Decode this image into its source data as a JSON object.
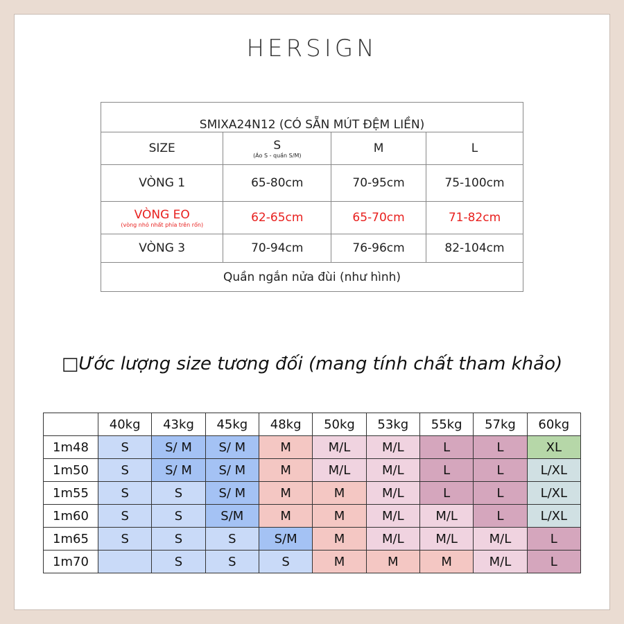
{
  "brand": "HERSIGN",
  "size_table": {
    "title": "SMIXA24N12 (CÓ SẴN MÚT ĐỆM LIỀN)",
    "header": {
      "label": "SIZE",
      "sizes": [
        {
          "name": "S",
          "note": "(Áo S - quần S/M)"
        },
        {
          "name": "M"
        },
        {
          "name": "L"
        }
      ]
    },
    "rows": [
      {
        "label": "VÒNG 1",
        "values": [
          "65-80cm",
          "70-95cm",
          "75-100cm"
        ]
      },
      {
        "label": "VÒNG EO",
        "note": "(vòng nhỏ nhất phía trên rốn)",
        "values": [
          "62-65cm",
          "65-70cm",
          "71-82cm"
        ],
        "color": "#e8201e"
      },
      {
        "label": "VÒNG 3",
        "values": [
          "70-94cm",
          "76-96cm",
          "82-104cm"
        ]
      }
    ],
    "footer": "Quần ngắn nửa đùi (như hình)"
  },
  "estimate_heading": "□Ước lượng size tương đối (mang tính chất tham khảo)",
  "estimate_table": {
    "weights": [
      "40kg",
      "43kg",
      "45kg",
      "48kg",
      "50kg",
      "53kg",
      "55kg",
      "57kg",
      "60kg"
    ],
    "rows": [
      {
        "height": "1m48",
        "sizes": [
          "S",
          "S/ M",
          "S/ M",
          "M",
          "M/L",
          "M/L",
          "L",
          "L",
          "XL"
        ],
        "colors": [
          "#c9daf8",
          "#a4c2f4",
          "#a4c2f4",
          "#f4c7c3",
          "#f0d3e0",
          "#f0d3e0",
          "#d5a6bd",
          "#d5a6bd",
          "#b6d7a8"
        ]
      },
      {
        "height": "1m50",
        "sizes": [
          "S",
          "S/ M",
          "S/ M",
          "M",
          "M/L",
          "M/L",
          "L",
          "L",
          "L/XL"
        ],
        "colors": [
          "#c9daf8",
          "#a4c2f4",
          "#a4c2f4",
          "#f4c7c3",
          "#f0d3e0",
          "#f0d3e0",
          "#d5a6bd",
          "#d5a6bd",
          "#d0e0e3"
        ]
      },
      {
        "height": "1m55",
        "sizes": [
          "S",
          "S",
          "S/ M",
          "M",
          "M",
          "M/L",
          "L",
          "L",
          "L/XL"
        ],
        "colors": [
          "#c9daf8",
          "#c9daf8",
          "#a4c2f4",
          "#f4c7c3",
          "#f4c7c3",
          "#f0d3e0",
          "#d5a6bd",
          "#d5a6bd",
          "#d0e0e3"
        ]
      },
      {
        "height": "1m60",
        "sizes": [
          "S",
          "S",
          "S/M",
          "M",
          "M",
          "M/L",
          "M/L",
          "L",
          "L/XL"
        ],
        "colors": [
          "#c9daf8",
          "#c9daf8",
          "#a4c2f4",
          "#f4c7c3",
          "#f4c7c3",
          "#f0d3e0",
          "#f0d3e0",
          "#d5a6bd",
          "#d0e0e3"
        ]
      },
      {
        "height": "1m65",
        "sizes": [
          "S",
          "S",
          "S",
          "S/M",
          "M",
          "M/L",
          "M/L",
          "M/L",
          "L"
        ],
        "colors": [
          "#c9daf8",
          "#c9daf8",
          "#c9daf8",
          "#a4c2f4",
          "#f4c7c3",
          "#f0d3e0",
          "#f0d3e0",
          "#f0d3e0",
          "#d5a6bd"
        ]
      },
      {
        "height": "1m70",
        "sizes": [
          null,
          "S",
          "S",
          "S",
          "M",
          "M",
          "M",
          "M/L",
          "L"
        ],
        "colors": [
          "#c9daf8",
          "#c9daf8",
          "#c9daf8",
          "#c9daf8",
          "#f4c7c3",
          "#f4c7c3",
          "#f4c7c3",
          "#f0d3e0",
          "#d5a6bd"
        ]
      }
    ]
  }
}
